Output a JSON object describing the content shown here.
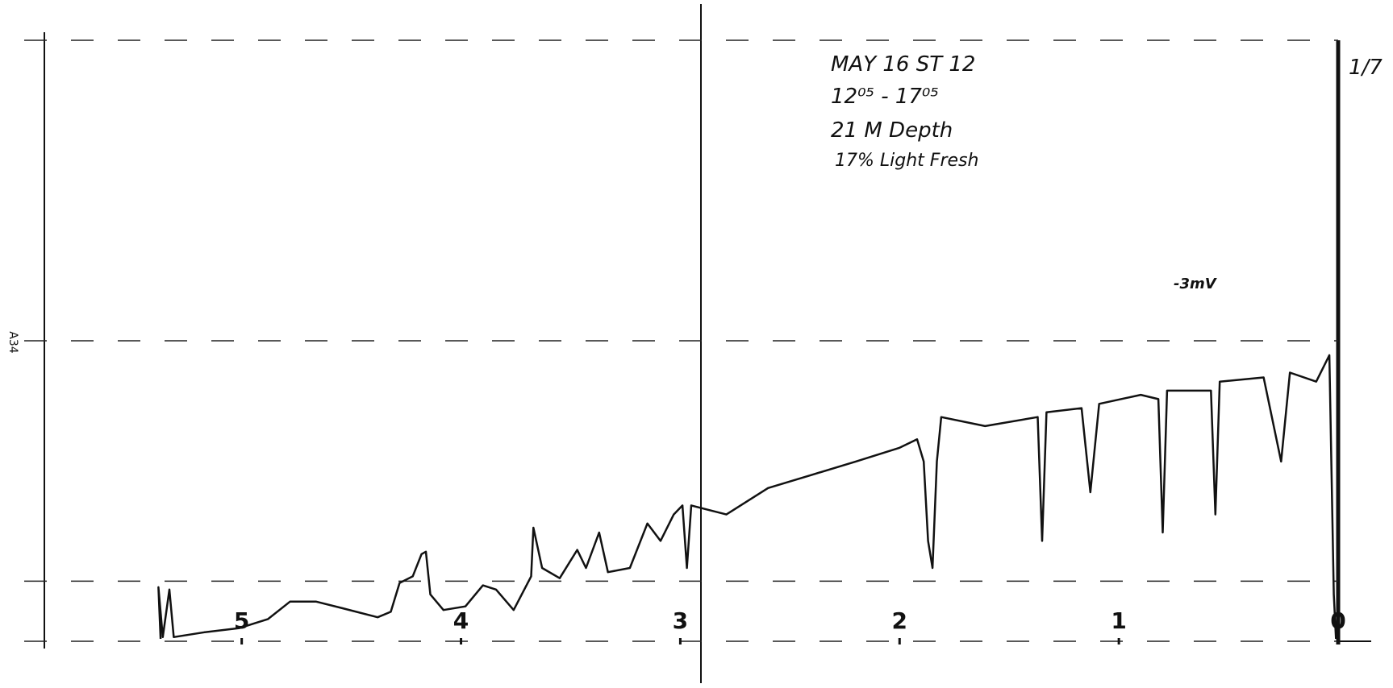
{
  "chart_data": {
    "type": "line",
    "x": [
      5.37,
      5.38,
      5.36,
      5.33,
      5.31,
      5.17,
      5.01,
      4.88,
      4.78,
      4.66,
      4.54,
      4.38,
      4.32,
      4.28,
      4.22,
      4.18,
      4.16,
      4.14,
      4.08,
      3.98,
      3.9,
      3.84,
      3.76,
      3.68,
      3.67,
      3.63,
      3.55,
      3.47,
      3.43,
      3.37,
      3.33,
      3.23,
      3.15,
      3.09,
      3.03,
      2.99,
      2.97,
      2.95,
      2.79,
      2.6,
      2.4,
      2.2,
      2.0,
      1.92,
      1.89,
      1.87,
      1.85,
      1.83,
      1.81,
      1.61,
      1.37,
      1.35,
      1.33,
      1.17,
      1.13,
      1.09,
      0.9,
      0.82,
      0.8,
      0.78,
      0.58,
      0.56,
      0.54,
      0.34,
      0.26,
      0.22,
      0.1,
      0.04,
      0.02,
      0.01
    ],
    "values": [
      0.4,
      9,
      0.7,
      8.6,
      0.7,
      1.5,
      2.2,
      3.7,
      6.6,
      6.6,
      5.5,
      4.0,
      4.9,
      9.7,
      10.8,
      14.5,
      14.9,
      7.8,
      5.2,
      5.8,
      9.3,
      8.6,
      5.2,
      10.8,
      18.9,
      12.2,
      10.5,
      15.2,
      12.2,
      18.1,
      11.5,
      12.2,
      19.6,
      16.7,
      21.1,
      22.6,
      12.2,
      22.6,
      21.1,
      25.5,
      27.7,
      29.9,
      32.2,
      33.6,
      29.9,
      16.7,
      12.2,
      29.9,
      37.3,
      35.8,
      37.3,
      16.7,
      38.1,
      38.8,
      24.8,
      39.5,
      41.0,
      40.3,
      18.1,
      41.7,
      41.7,
      21.1,
      43.2,
      43.9,
      29.9,
      44.7,
      43.2,
      47.6,
      7.8,
      0.4
    ],
    "color": "#111111",
    "xlim": [
      5.9,
      0
    ],
    "xticks": [
      5,
      4,
      3,
      2,
      1,
      0
    ],
    "ylim": [
      0,
      100
    ],
    "yticks": [
      0,
      10,
      50,
      100
    ],
    "grid": true,
    "annotations": [
      "MAY 16  ST 12",
      "12⁰⁵ - 17⁰⁵",
      "21 M Depth",
      "17% Light Fresh",
      "-3mV",
      "1/7",
      "A34"
    ]
  }
}
